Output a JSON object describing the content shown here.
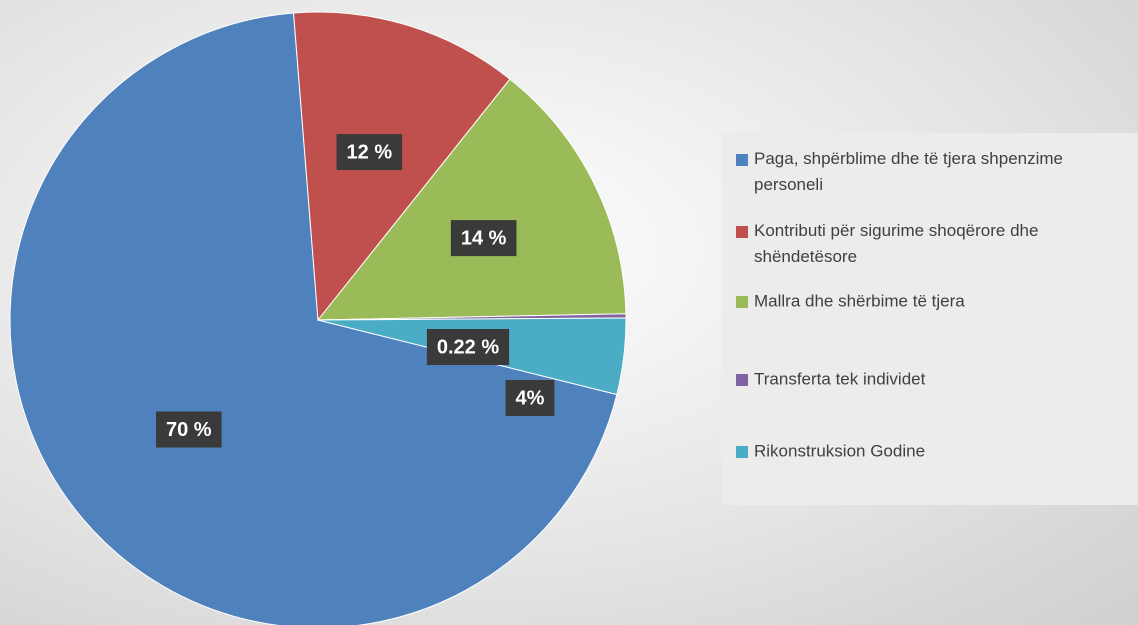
{
  "chart_data": {
    "type": "pie",
    "categories": [
      "Paga, shpërblime dhe të tjera shpenzime personeli",
      "Kontributi për sigurime shoqërore dhe shëndetësore",
      "Mallra dhe shërbime të tjera",
      "Transferta tek individet",
      "Rikonstruksion Godine"
    ],
    "values": [
      70,
      12,
      14,
      0.22,
      4
    ],
    "value_labels": [
      "70 %",
      "12 %",
      "14 %",
      "0.22 %",
      "4%"
    ],
    "colors": [
      "#4f81bd",
      "#c0504d",
      "#9bbb59",
      "#8064a2",
      "#4bacc6"
    ],
    "legend": "right"
  }
}
